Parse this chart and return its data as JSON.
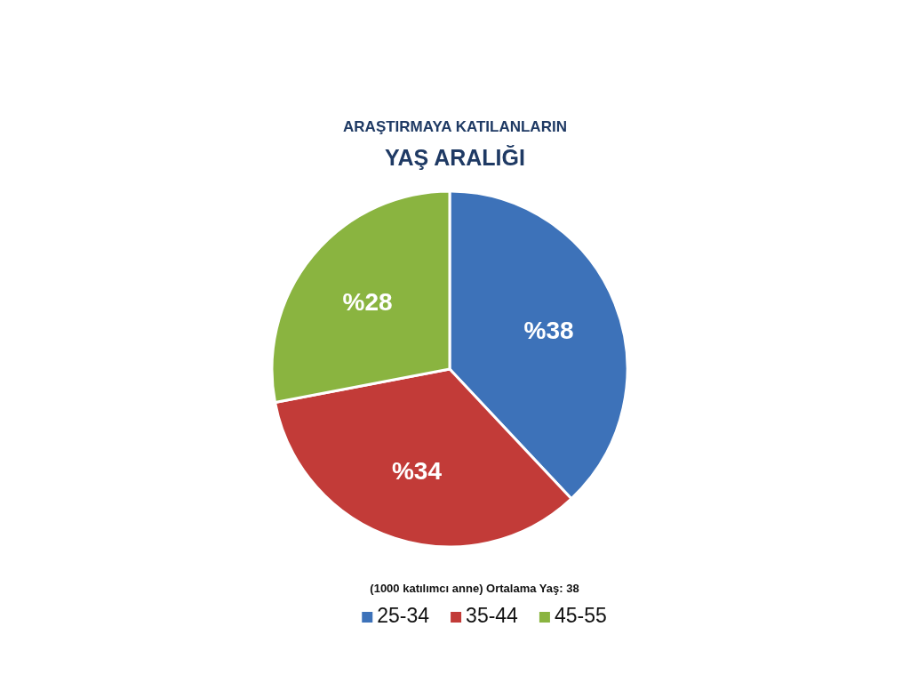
{
  "chart_data": {
    "type": "pie",
    "title": "ARAŞTIRMAYA KATILANLARIN",
    "subtitle": "YAŞ ARALIĞI",
    "categories": [
      "25-34",
      "35-44",
      "45-55"
    ],
    "values": [
      38,
      34,
      28
    ],
    "colors": [
      "#3d72b9",
      "#c23b38",
      "#8ab440"
    ],
    "value_labels": [
      "%38",
      "%34",
      "%28"
    ],
    "annotations": [
      "(1000 katılımcı anne) Ortalama Yaş: 38"
    ],
    "legend": "bottom"
  }
}
